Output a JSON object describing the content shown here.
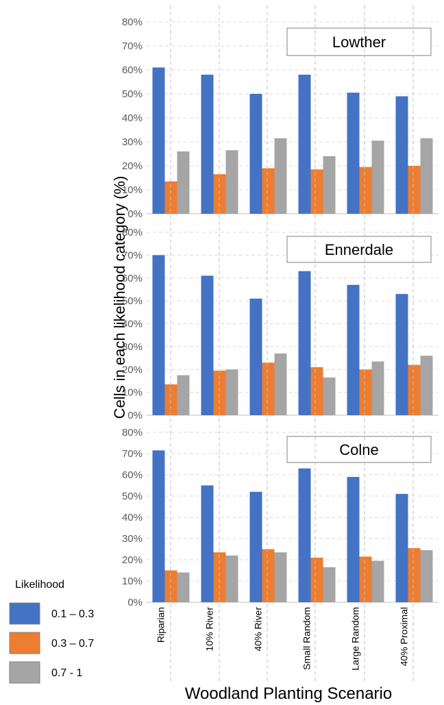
{
  "chart_data": {
    "type": "bar",
    "xlabel": "Woodland Planting Scenario",
    "ylabel": "Cells in each likelihood category (%)",
    "ylim": [
      0,
      80
    ],
    "yticks": [
      "0%",
      "10%",
      "20%",
      "30%",
      "40%",
      "50%",
      "60%",
      "70%",
      "80%"
    ],
    "grid": true,
    "categories": [
      "Riparian",
      "10% River",
      "40% River",
      "Small Random",
      "Large Random",
      "40% Proximal"
    ],
    "legend": {
      "title": "Likelihood",
      "placement": "bottom-left",
      "entries": [
        {
          "label": "0.1 – 0.3",
          "color": "#4472C4"
        },
        {
          "label": "0.3 – 0.7",
          "color": "#ED7D31"
        },
        {
          "label": "0.7 - 1",
          "color": "#A5A5A5"
        }
      ]
    },
    "panels": [
      {
        "title": "Lowther",
        "series": [
          {
            "name": "0.1 – 0.3",
            "values": [
              61,
              58,
              50,
              58,
              50.5,
              49
            ]
          },
          {
            "name": "0.3 – 0.7",
            "values": [
              13.5,
              16.5,
              19,
              18.5,
              19.5,
              20
            ]
          },
          {
            "name": "0.7 - 1",
            "values": [
              26,
              26.5,
              31.5,
              24,
              30.5,
              31.5
            ]
          }
        ]
      },
      {
        "title": "Ennerdale",
        "series": [
          {
            "name": "0.1 – 0.3",
            "values": [
              70,
              61,
              51,
              63,
              57,
              53
            ]
          },
          {
            "name": "0.3 – 0.7",
            "values": [
              13.5,
              19.5,
              23,
              21,
              20,
              22
            ]
          },
          {
            "name": "0.7 - 1",
            "values": [
              17.5,
              20,
              27,
              16.5,
              23.5,
              26
            ]
          }
        ]
      },
      {
        "title": "Colne",
        "series": [
          {
            "name": "0.1 – 0.3",
            "values": [
              71.5,
              55,
              52,
              63,
              59,
              51
            ]
          },
          {
            "name": "0.3 – 0.7",
            "values": [
              15,
              23.5,
              25,
              21,
              21.5,
              25.5
            ]
          },
          {
            "name": "0.7 - 1",
            "values": [
              14,
              22,
              23.5,
              16.5,
              19.5,
              24.5
            ]
          }
        ]
      }
    ]
  }
}
